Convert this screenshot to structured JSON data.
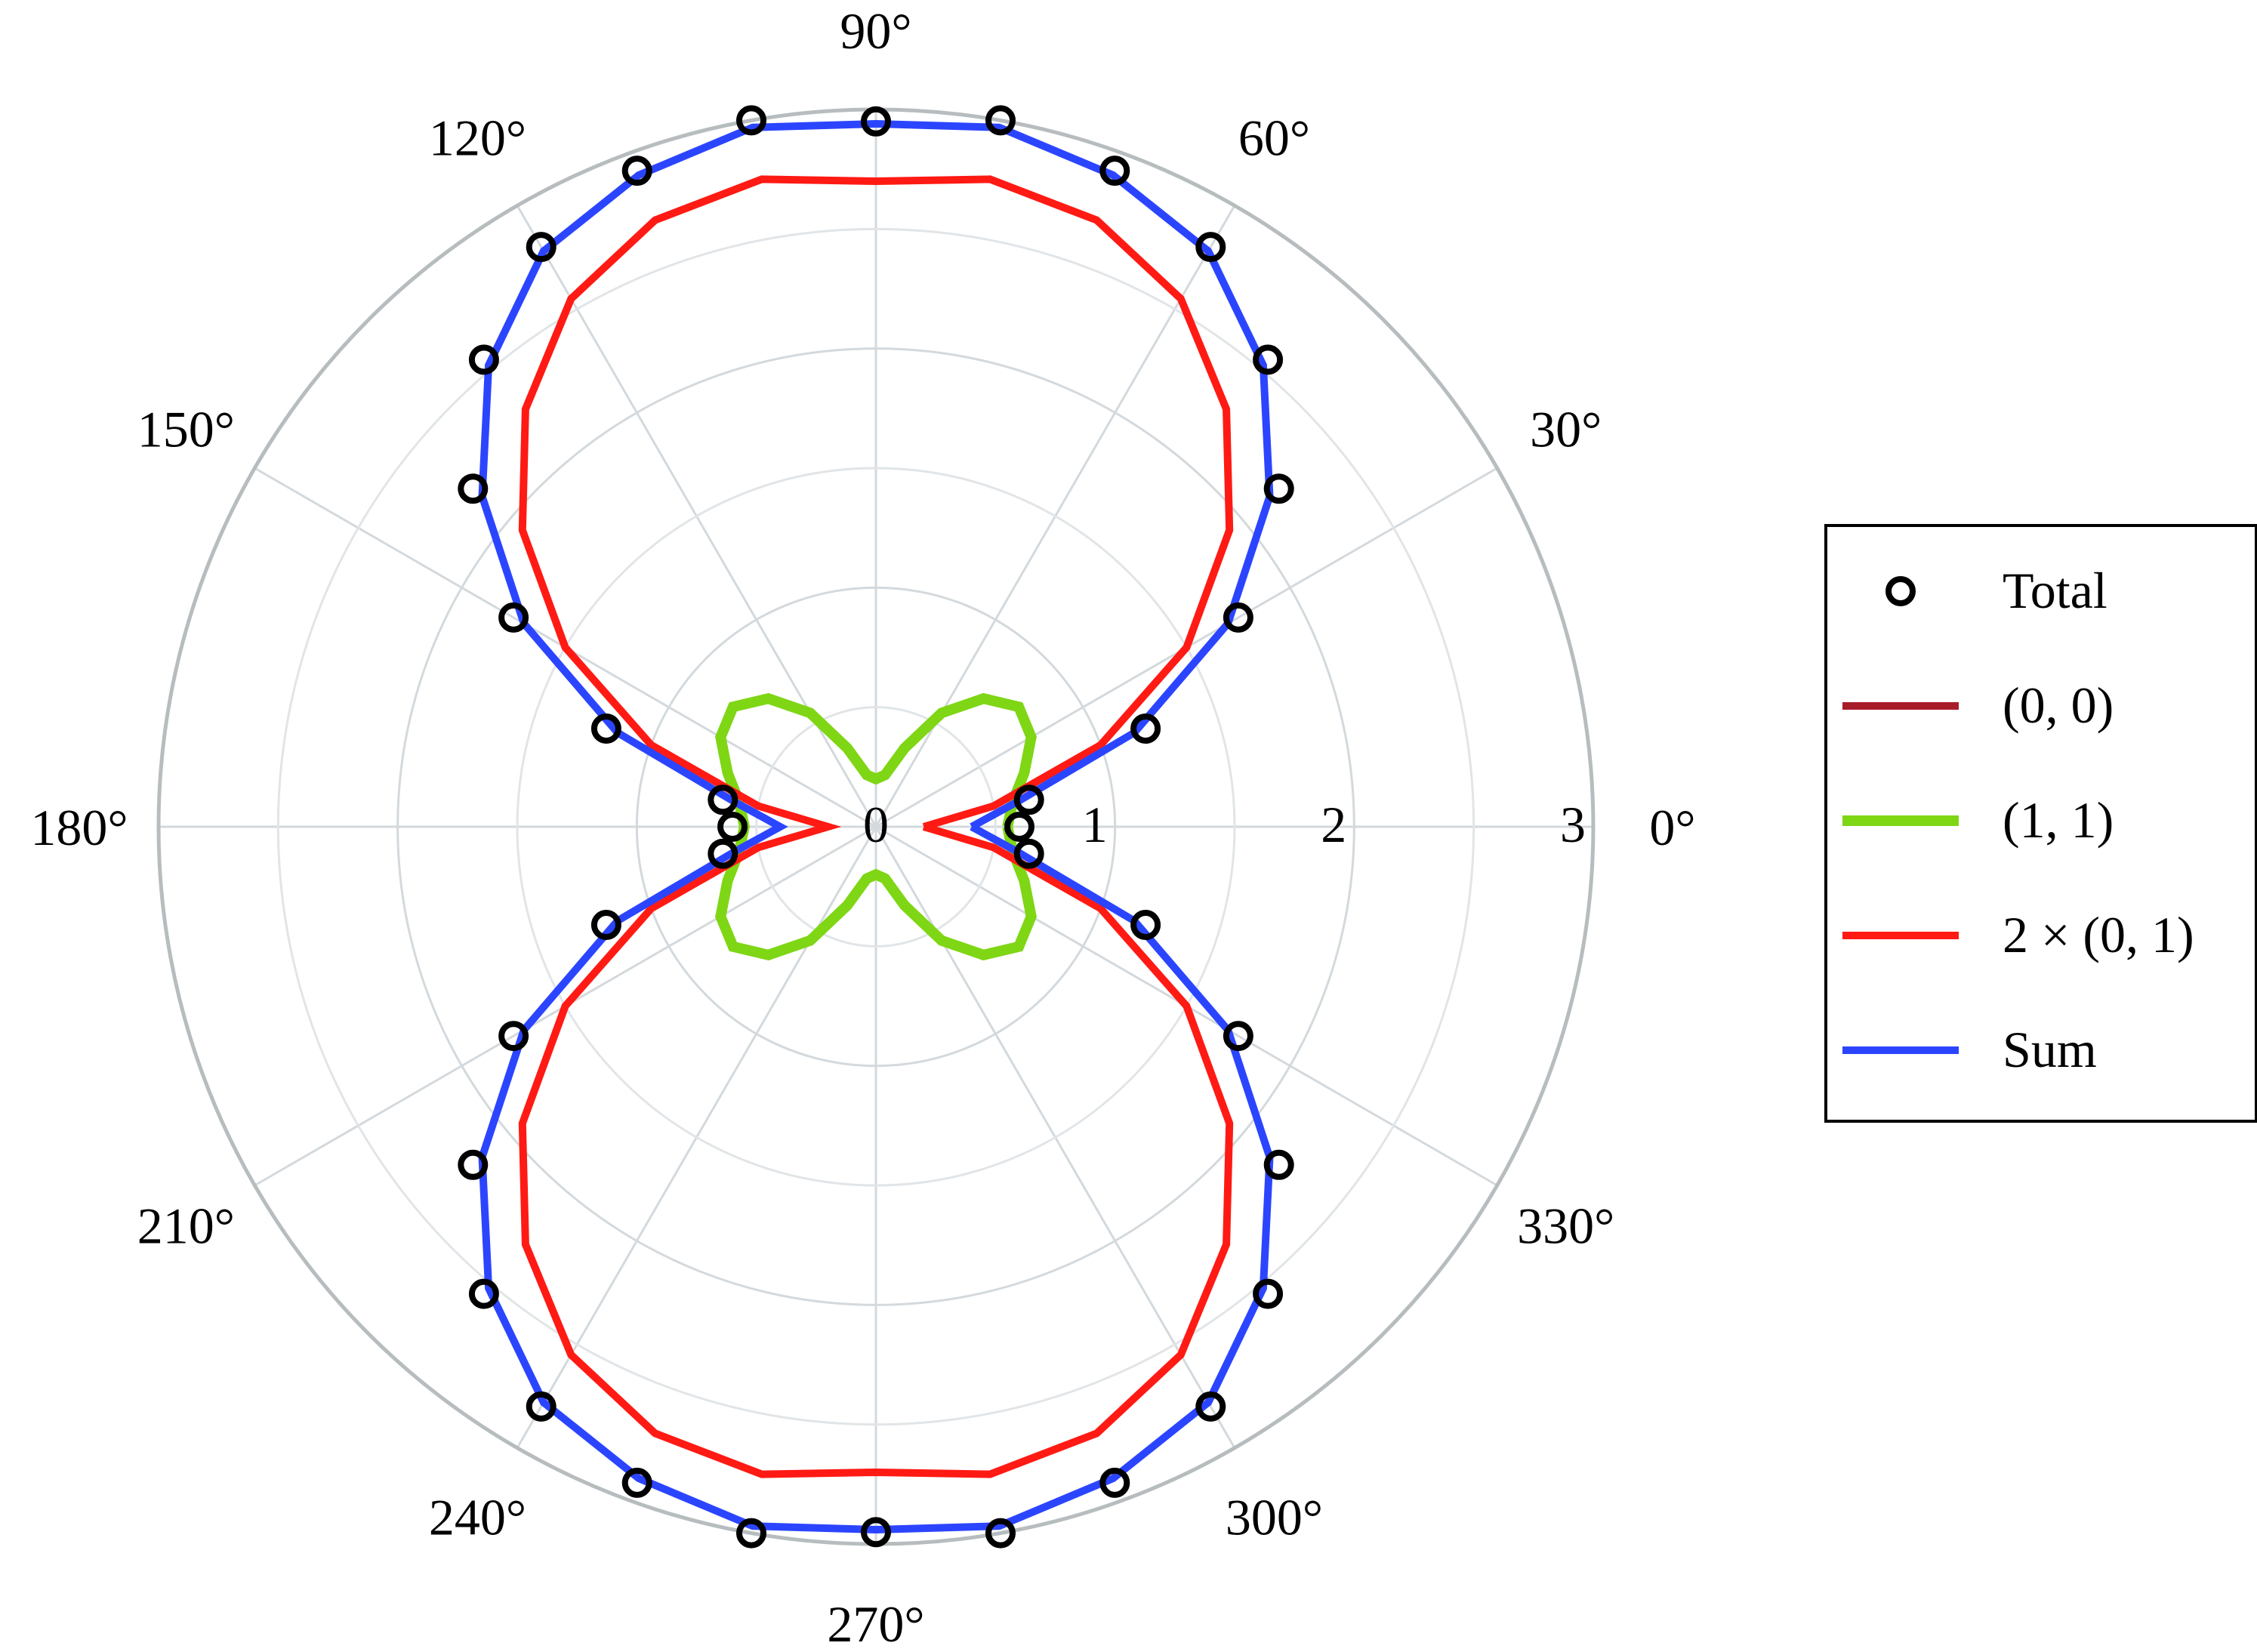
{
  "chart_data": {
    "type": "polar",
    "title": "",
    "radial_axis": {
      "range": [
        0,
        3
      ],
      "ticks": [
        "0",
        "1",
        "2",
        "3"
      ],
      "minor_grid": [
        0.5,
        1.5,
        2.5
      ]
    },
    "angular_axis": {
      "ticks": [
        "0°",
        "30°",
        "60°",
        "90°",
        "120°",
        "150°",
        "180°",
        "210°",
        "240°",
        "270°",
        "300°",
        "330°"
      ],
      "grid_step_deg": 30
    },
    "grid": true,
    "legend_position": "right",
    "angle_deg": [
      0,
      10,
      20,
      30,
      40,
      50,
      60,
      70,
      80,
      90,
      100,
      110,
      120,
      130,
      140,
      150,
      160,
      170,
      180,
      190,
      200,
      210,
      220,
      230,
      240,
      250,
      260,
      270,
      280,
      290,
      300,
      310,
      320,
      330,
      340,
      350,
      360
    ],
    "series": [
      {
        "name": "Total",
        "style": "markers",
        "color": "#000000",
        "values": [
          0.6,
          0.65,
          1.2,
          1.75,
          2.2,
          2.55,
          2.8,
          2.92,
          3.0,
          2.95,
          3.0,
          2.92,
          2.8,
          2.55,
          2.2,
          1.75,
          1.2,
          0.65,
          0.6,
          0.65,
          1.2,
          1.75,
          2.2,
          2.55,
          2.8,
          2.92,
          3.0,
          2.95,
          3.0,
          2.92,
          2.8,
          2.55,
          2.2,
          1.75,
          1.2,
          0.65,
          0.6
        ]
      },
      {
        "name": "(0, 0)",
        "style": "line",
        "color": "#a81c2a",
        "values": []
      },
      {
        "name": "(1, 1)",
        "style": "line",
        "color": "#7fd615",
        "values": [
          0.55,
          0.58,
          0.66,
          0.75,
          0.78,
          0.7,
          0.55,
          0.35,
          0.22,
          0.2,
          0.22,
          0.35,
          0.55,
          0.7,
          0.78,
          0.75,
          0.66,
          0.58,
          0.55,
          0.58,
          0.66,
          0.75,
          0.78,
          0.7,
          0.55,
          0.35,
          0.22,
          0.2,
          0.22,
          0.35,
          0.55,
          0.7,
          0.78,
          0.75,
          0.66,
          0.58,
          0.55
        ]
      },
      {
        "name": "2 × (0, 1)",
        "style": "line",
        "color": "#ff1a14",
        "values": [
          0.2,
          0.5,
          1.0,
          1.5,
          1.93,
          2.28,
          2.55,
          2.7,
          2.75,
          2.7,
          2.75,
          2.7,
          2.55,
          2.28,
          1.93,
          1.5,
          1.0,
          0.5,
          0.2,
          0.5,
          1.0,
          1.5,
          1.93,
          2.28,
          2.55,
          2.7,
          2.75,
          2.7,
          2.75,
          2.7,
          2.55,
          2.28,
          1.93,
          1.5,
          1.0,
          0.5,
          0.2
        ]
      },
      {
        "name": "Sum",
        "style": "line",
        "color": "#2b45ff",
        "values": [
          0.4,
          0.6,
          1.15,
          1.7,
          2.15,
          2.52,
          2.78,
          2.9,
          2.97,
          2.94,
          2.97,
          2.9,
          2.78,
          2.52,
          2.15,
          1.7,
          1.15,
          0.6,
          0.4,
          0.6,
          1.15,
          1.7,
          2.15,
          2.52,
          2.78,
          2.9,
          2.97,
          2.94,
          2.97,
          2.9,
          2.78,
          2.52,
          2.15,
          1.7,
          1.15,
          0.6,
          0.4
        ]
      }
    ]
  }
}
